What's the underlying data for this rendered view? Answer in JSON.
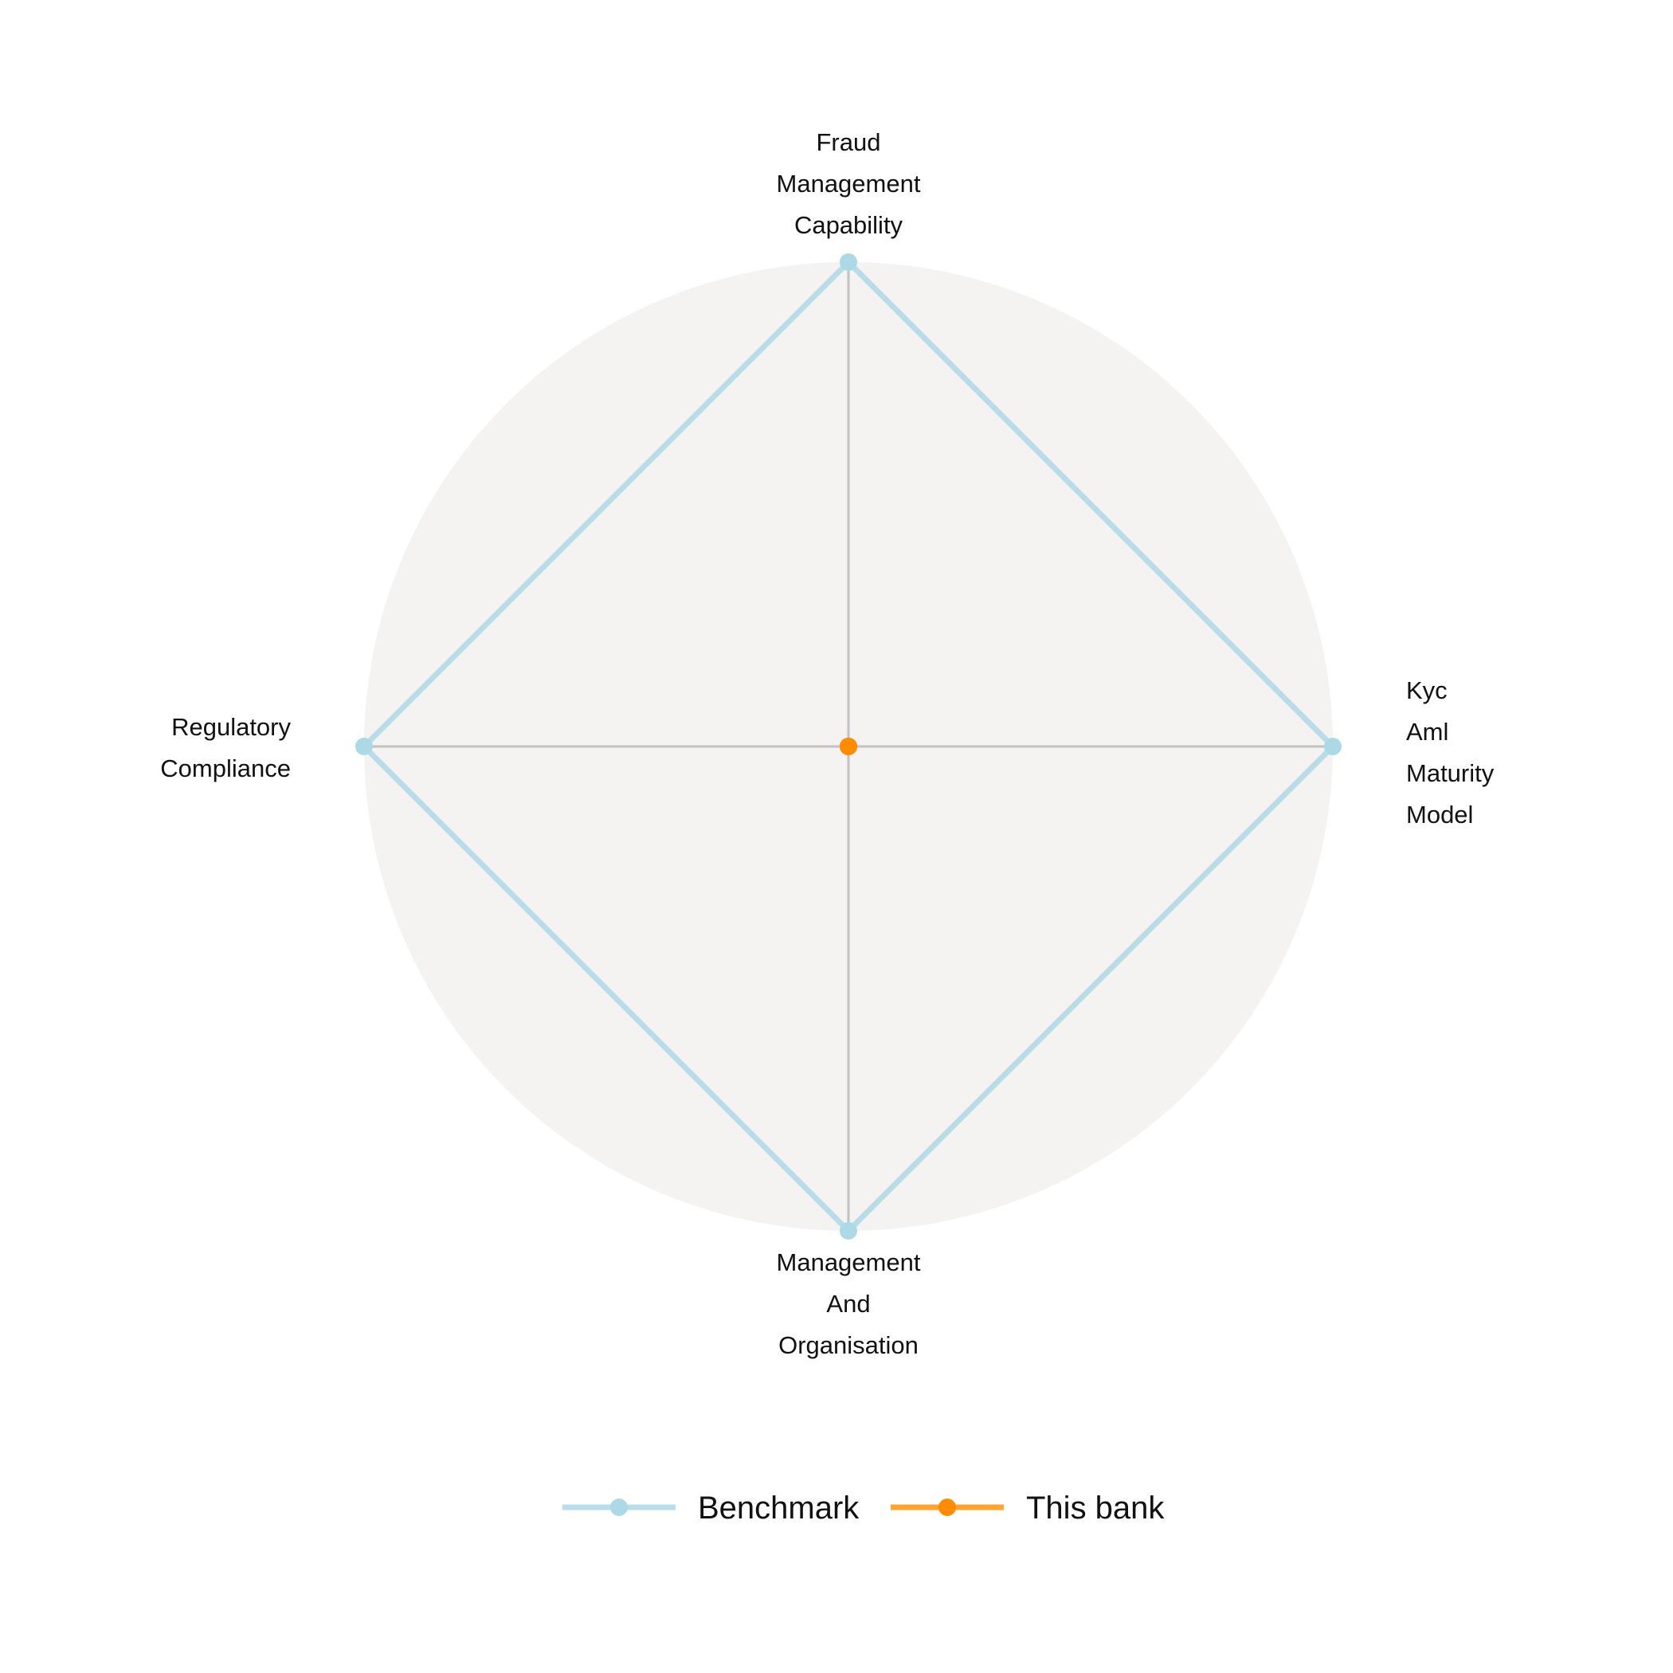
{
  "chart_data": {
    "type": "radar",
    "title": "",
    "axes": [
      {
        "label_lines": [
          "Fraud",
          "Management",
          "Capability"
        ]
      },
      {
        "label_lines": [
          "Kyc",
          "Aml",
          "Maturity",
          "Model"
        ]
      },
      {
        "label_lines": [
          "Management",
          "And",
          "Organisation"
        ]
      },
      {
        "label_lines": [
          "Regulatory",
          "Compliance"
        ]
      }
    ],
    "range": [
      0,
      1
    ],
    "series": [
      {
        "name": "Benchmark",
        "values": [
          1,
          1,
          1,
          1
        ],
        "color": "#add8e6"
      },
      {
        "name": "This bank",
        "values": [
          0,
          0,
          0,
          0
        ],
        "color": "#ff8c00"
      }
    ],
    "background_color": "#f5f3f1",
    "grid": true,
    "legend_position": "bottom"
  }
}
